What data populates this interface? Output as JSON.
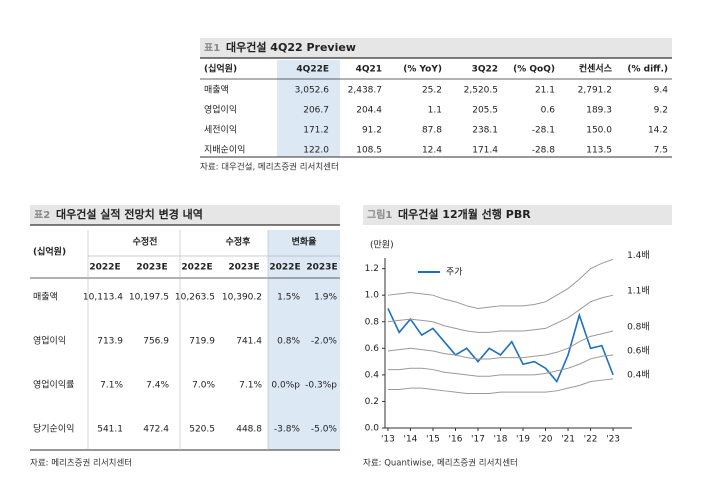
{
  "table1": {
    "label": "표1",
    "title": "대우건설 4Q22 Preview",
    "header": [
      "(십억원)",
      "4Q22E",
      "4Q21",
      "(% YoY)",
      "3Q22",
      "(% QoQ)",
      "컨센서스",
      "(% diff.)"
    ],
    "rows": [
      [
        "매출액",
        "3,052.6",
        "2,438.7",
        "25.2",
        "2,520.5",
        "21.1",
        "2,791.2",
        "9.4"
      ],
      [
        "영업이익",
        "206.7",
        "204.4",
        "1.1",
        "205.5",
        "0.6",
        "189.3",
        "9.2"
      ],
      [
        "세전이익",
        "171.2",
        "91.2",
        "87.8",
        "238.1",
        "-28.1",
        "150.0",
        "14.2"
      ],
      [
        "지배순이익",
        "122.0",
        "108.5",
        "12.4",
        "171.4",
        "-28.8",
        "113.5",
        "7.5"
      ]
    ],
    "source": "자료: 대우건설, 메리츠증권 리서치센터"
  },
  "table2": {
    "label": "표2",
    "title": "대우건설 실적 전망치 변경 내역",
    "header": [
      "(십억원)",
      "수정전",
      "수정후",
      "변화율"
    ],
    "subheader": [
      "2022E",
      "2023E",
      "2022E",
      "2023E",
      "2022E",
      "2023E"
    ],
    "rows": [
      [
        "매출액",
        "10,113.4",
        "10,197.5",
        "10,263.5",
        "10,390.2",
        "1.5%",
        "1.9%"
      ],
      [
        "영업이익",
        "713.9",
        "756.9",
        "719.9",
        "741.4",
        "0.8%",
        "-2.0%"
      ],
      [
        "영업이익률",
        "7.1%",
        "7.4%",
        "7.0%",
        "7.1%",
        "0.0%p",
        "-0.3%p"
      ],
      [
        "당기순이익",
        "541.1",
        "472.4",
        "520.5",
        "448.8",
        "-3.8%",
        "-5.0%"
      ]
    ],
    "source": "자료: 메리츠증권 리서치센터"
  },
  "chart_data": {
    "type": "line",
    "label": "그림1",
    "title": "대우건설 12개월 선행 PBR",
    "y_label": "(만원)",
    "x": [
      2013,
      2013.5,
      2014,
      2014.5,
      2015,
      2015.5,
      2016,
      2016.5,
      2017,
      2017.5,
      2018,
      2018.5,
      2019,
      2019.5,
      2020,
      2020.5,
      2021,
      2021.5,
      2022,
      2022.5,
      2023
    ],
    "xlim": [
      2012.87,
      2023.84
    ],
    "xticks": [
      {
        "value": 2013,
        "label": "'13"
      },
      {
        "value": 2014,
        "label": "'14"
      },
      {
        "value": 2015,
        "label": "'15"
      },
      {
        "value": 2016,
        "label": "'16"
      },
      {
        "value": 2017,
        "label": "'17"
      },
      {
        "value": 2018,
        "label": "'18"
      },
      {
        "value": 2019,
        "label": "'19"
      },
      {
        "value": 2020,
        "label": "'20"
      },
      {
        "value": 2021,
        "label": "'21"
      },
      {
        "value": 2022,
        "label": "'22"
      },
      {
        "value": 2023,
        "label": "'23"
      }
    ],
    "ylim": [
      0,
      1.28
    ],
    "yticks": [
      {
        "value": 0,
        "label": "0.0"
      },
      {
        "value": 0.2,
        "label": "0.2"
      },
      {
        "value": 0.4,
        "label": "0.4"
      },
      {
        "value": 0.6,
        "label": "0.6"
      },
      {
        "value": 0.8,
        "label": "0.8"
      },
      {
        "value": 1,
        "label": "1.0"
      },
      {
        "value": 1.2,
        "label": "1.2"
      }
    ],
    "series": [
      {
        "name": "주가",
        "color": "#1f6fc0",
        "values": [
          0.9,
          0.72,
          0.82,
          0.7,
          0.75,
          0.65,
          0.55,
          0.6,
          0.5,
          0.6,
          0.55,
          0.65,
          0.48,
          0.5,
          0.45,
          0.35,
          0.55,
          0.85,
          0.6,
          0.62,
          0.4
        ]
      },
      {
        "name": "1.4배",
        "color": "#9a9a9a",
        "values": [
          1.0,
          1.01,
          1.02,
          1.01,
          1.0,
          0.97,
          0.95,
          0.92,
          0.9,
          0.91,
          0.92,
          0.92,
          0.92,
          0.93,
          0.95,
          1.0,
          1.05,
          1.12,
          1.2,
          1.24,
          1.27
        ]
      },
      {
        "name": "1.1배",
        "color": "#9a9a9a",
        "values": [
          0.8,
          0.81,
          0.82,
          0.81,
          0.8,
          0.77,
          0.75,
          0.73,
          0.72,
          0.72,
          0.73,
          0.73,
          0.73,
          0.74,
          0.75,
          0.79,
          0.83,
          0.89,
          0.95,
          0.98,
          1.0
        ]
      },
      {
        "name": "0.8배",
        "color": "#9a9a9a",
        "values": [
          0.58,
          0.59,
          0.6,
          0.59,
          0.58,
          0.56,
          0.55,
          0.53,
          0.52,
          0.52,
          0.53,
          0.53,
          0.53,
          0.54,
          0.55,
          0.57,
          0.6,
          0.65,
          0.69,
          0.71,
          0.73
        ]
      },
      {
        "name": "0.6배",
        "color": "#9a9a9a",
        "values": [
          0.44,
          0.44,
          0.45,
          0.45,
          0.44,
          0.42,
          0.41,
          0.4,
          0.39,
          0.39,
          0.4,
          0.4,
          0.4,
          0.4,
          0.41,
          0.43,
          0.45,
          0.48,
          0.52,
          0.54,
          0.55
        ]
      },
      {
        "name": "0.4배",
        "color": "#9a9a9a",
        "values": [
          0.29,
          0.29,
          0.3,
          0.3,
          0.29,
          0.28,
          0.27,
          0.26,
          0.26,
          0.26,
          0.27,
          0.27,
          0.27,
          0.27,
          0.27,
          0.28,
          0.3,
          0.32,
          0.35,
          0.36,
          0.37
        ]
      }
    ],
    "source": "자료: Quantiwise, 메리츠증권 리서치센터"
  }
}
